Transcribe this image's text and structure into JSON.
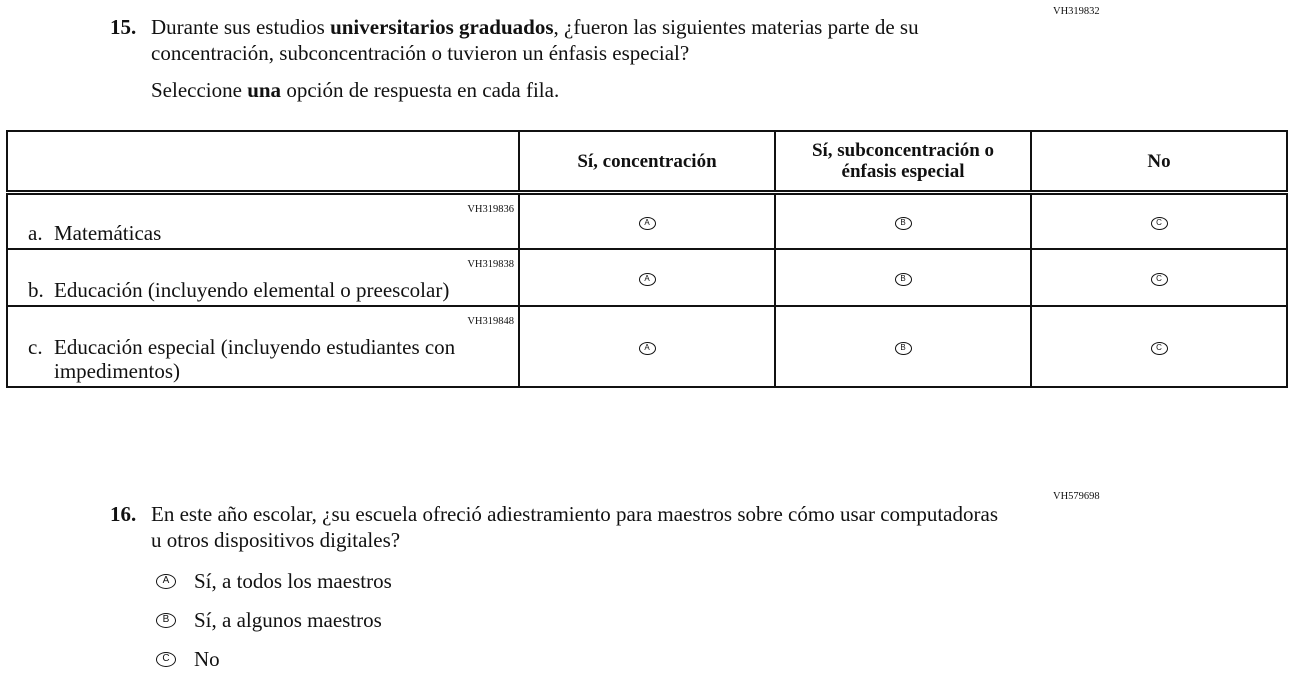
{
  "q15": {
    "code": "VH319832",
    "number": "15.",
    "text_pre": "Durante sus estudios ",
    "text_bold": "universitarios graduados",
    "text_post": ", ¿fueron las siguientes materias parte de su concentración, subconcentración o tuvieron un énfasis especial?",
    "instruction_pre": "Seleccione ",
    "instruction_bold": "una",
    "instruction_post": " opción de respuesta en cada fila.",
    "columns": [
      "",
      "Sí, concentración",
      "Sí, subconcentración o énfasis especial",
      "No"
    ],
    "option_letters": [
      "A",
      "B",
      "C"
    ],
    "rows": [
      {
        "letter": "a.",
        "label": "Matemáticas",
        "code": "VH319836"
      },
      {
        "letter": "b.",
        "label": "Educación (incluyendo elemental o preescolar)",
        "code": "VH319838"
      },
      {
        "letter": "c.",
        "label": "Educación especial (incluyendo estudiantes con impedimentos)",
        "code": "VH319848"
      }
    ]
  },
  "q16": {
    "code": "VH579698",
    "number": "16.",
    "text": "En este año escolar, ¿su escuela ofreció adiestramiento para maestros sobre cómo usar computadoras u otros dispositivos digitales?",
    "options": [
      {
        "letter": "A",
        "label": "Sí, a todos los maestros"
      },
      {
        "letter": "B",
        "label": "Sí, a algunos maestros"
      },
      {
        "letter": "C",
        "label": "No"
      }
    ]
  }
}
